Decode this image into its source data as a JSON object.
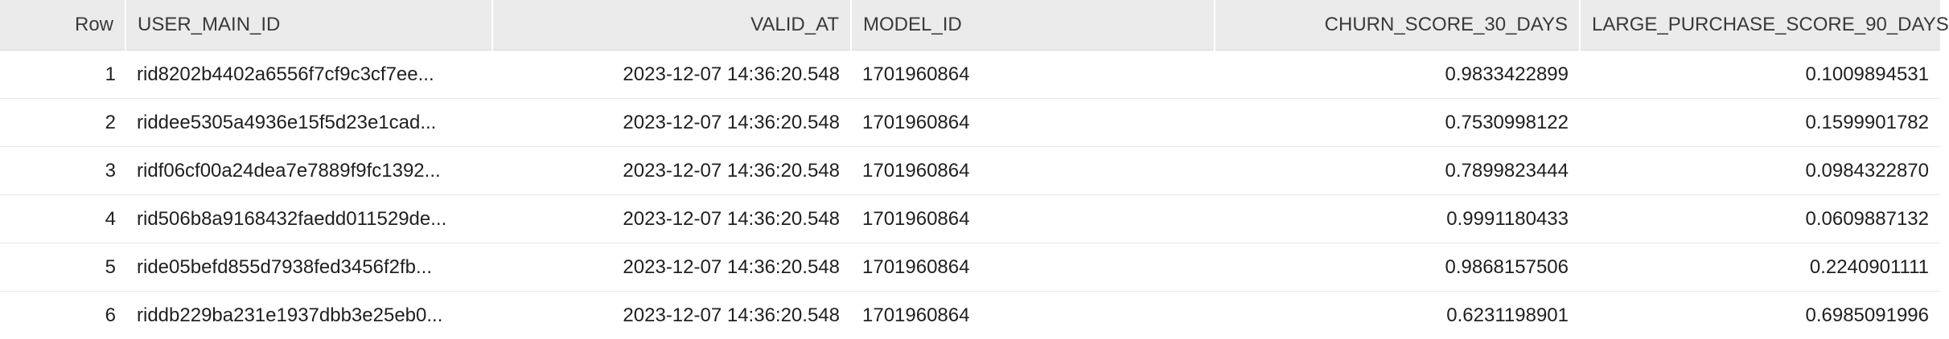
{
  "columns": [
    {
      "label": "Row",
      "align": "right"
    },
    {
      "label": "USER_MAIN_ID",
      "align": "left"
    },
    {
      "label": "VALID_AT",
      "align": "right"
    },
    {
      "label": "MODEL_ID",
      "align": "left"
    },
    {
      "label": "CHURN_SCORE_30_DAYS",
      "align": "right"
    },
    {
      "label": "LARGE_PURCHASE_SCORE_90_DAYS",
      "align": "right"
    }
  ],
  "rows": [
    [
      "1",
      "rid8202b4402a6556f7cf9c3cf7ee...",
      "2023-12-07 14:36:20.548",
      "1701960864",
      "0.9833422899",
      "0.1009894531"
    ],
    [
      "2",
      "riddee5305a4936e15f5d23e1cad...",
      "2023-12-07 14:36:20.548",
      "1701960864",
      "0.7530998122",
      "0.1599901782"
    ],
    [
      "3",
      "ridf06cf00a24dea7e7889f9fc1392...",
      "2023-12-07 14:36:20.548",
      "1701960864",
      "0.7899823444",
      "0.0984322870"
    ],
    [
      "4",
      "rid506b8a9168432faedd011529de...",
      "2023-12-07 14:36:20.548",
      "1701960864",
      "0.9991180433",
      "0.0609887132"
    ],
    [
      "5",
      "ride05befd855d7938fed3456f2fb...",
      "2023-12-07 14:36:20.548",
      "1701960864",
      "0.9868157506",
      "0.2240901111"
    ],
    [
      "6",
      "riddb229ba231e1937dbb3e25eb0...",
      "2023-12-07 14:36:20.548",
      "1701960864",
      "0.6231198901",
      "0.6985091996"
    ]
  ]
}
